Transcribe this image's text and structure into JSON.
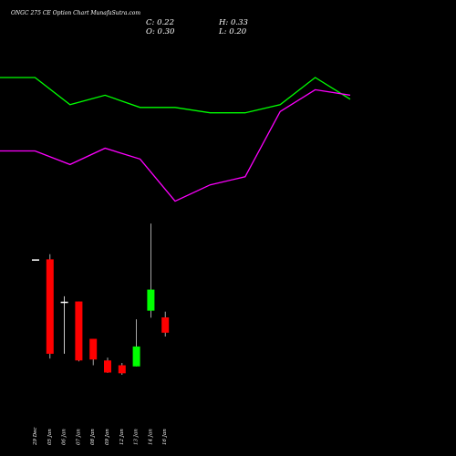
{
  "chart_data": {
    "type": "candlestick",
    "title": "ONGC 275 CE Option  Chart MunafaSutra.com",
    "ohlc_labels": {
      "close": "C: 0.22",
      "high": "H: 0.33",
      "open": "O: 0.30",
      "low": "L: 0.20"
    },
    "ylim": [
      0,
      0.6
    ],
    "categories": [
      "29 Dec",
      "05 Jan",
      "06 Jan",
      "07 Jan",
      "08 Jan",
      "09 Jan",
      "12 Jan",
      "13 Jan",
      "14 Jan",
      "16 Jan"
    ],
    "candles": [
      {
        "date": "29 Dec",
        "open": 0.603,
        "high": 0.603,
        "low": 0.603,
        "close": 0.603
      },
      {
        "date": "05 Jan",
        "open": 0.603,
        "high": 0.63,
        "low": 0.085,
        "close": 0.11
      },
      {
        "date": "06 Jan",
        "open": 0.382,
        "high": 0.41,
        "low": 0.11,
        "close": 0.38
      },
      {
        "date": "07 Jan",
        "open": 0.383,
        "high": 0.383,
        "low": 0.07,
        "close": 0.075
      },
      {
        "date": "08 Jan",
        "open": 0.188,
        "high": 0.188,
        "low": 0.05,
        "close": 0.08
      },
      {
        "date": "09 Jan",
        "open": 0.075,
        "high": 0.09,
        "low": 0.01,
        "close": 0.012
      },
      {
        "date": "12 Jan",
        "open": 0.05,
        "high": 0.062,
        "low": 0.0,
        "close": 0.008
      },
      {
        "date": "13 Jan",
        "open": 0.044,
        "high": 0.29,
        "low": 0.044,
        "close": 0.148
      },
      {
        "date": "14 Jan",
        "open": 0.335,
        "high": 0.79,
        "low": 0.298,
        "close": 0.445
      },
      {
        "date": "16 Jan",
        "open": 0.3,
        "high": 0.33,
        "low": 0.2,
        "close": 0.22
      }
    ],
    "overlay_lines": [
      {
        "color": "#00ff00",
        "values": [
          1.0,
          1.0,
          0.8,
          0.87,
          0.78,
          0.78,
          0.74,
          0.74,
          0.8,
          1.0,
          0.84
        ]
      },
      {
        "color": "#ff00ff",
        "values": [
          0.46,
          0.46,
          0.36,
          0.48,
          0.4,
          0.09,
          0.21,
          0.27,
          0.75,
          0.91,
          0.87
        ]
      }
    ],
    "colors": {
      "up": "#00ff00",
      "down": "#ff0000",
      "doji": "#ffffff",
      "background": "#000000"
    },
    "grid": false
  }
}
